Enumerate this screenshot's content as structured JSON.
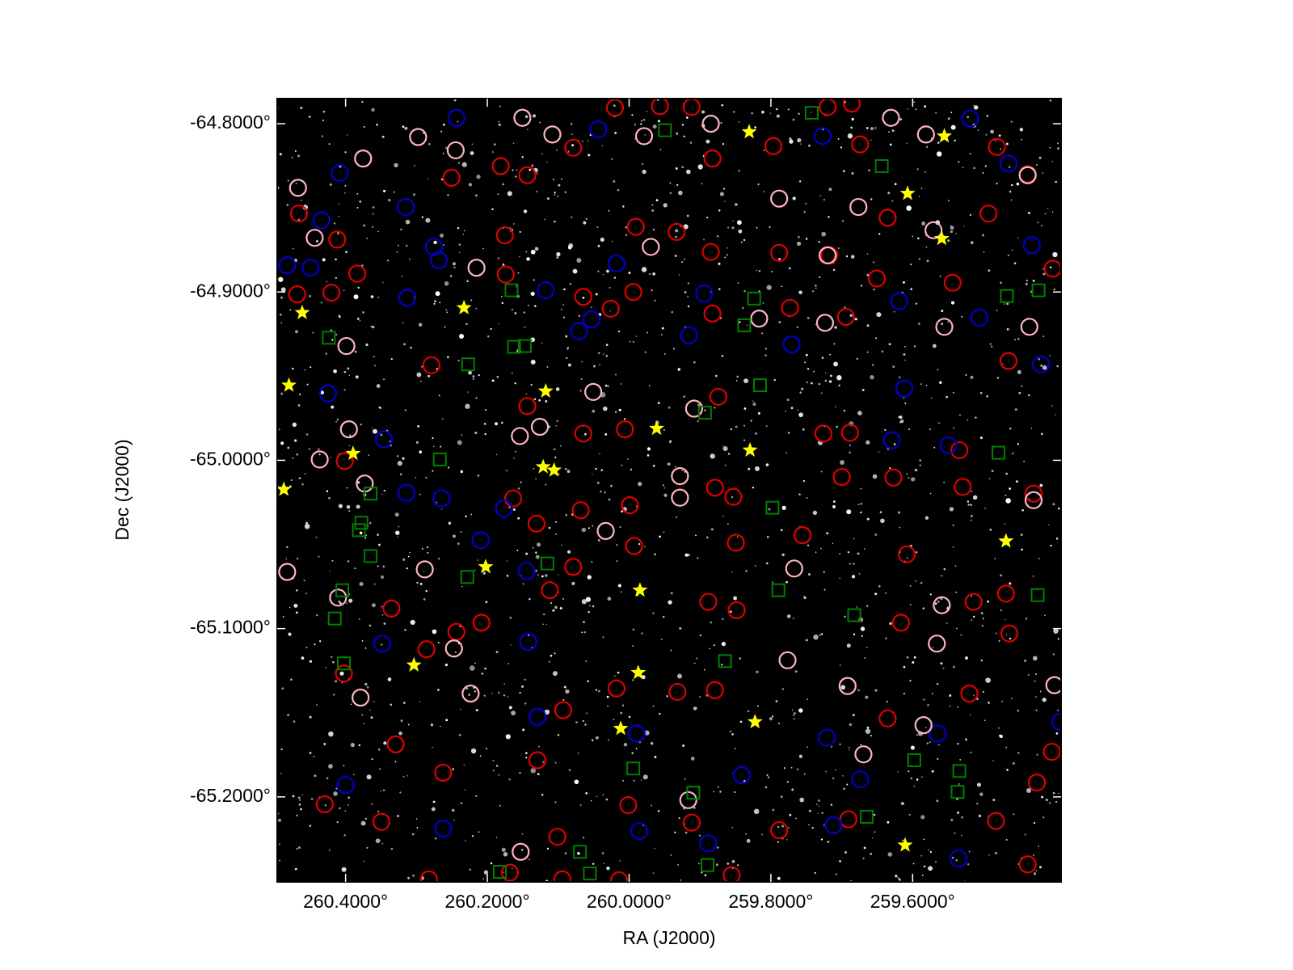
{
  "chart_data": {
    "type": "scatter",
    "xlabel": "RA (J2000)",
    "ylabel": "Dec (J2000)",
    "xlim": [
      260.4965,
      259.3906
    ],
    "ylim": [
      -65.2505,
      -64.7851
    ],
    "xticks": [
      {
        "value": 260.4,
        "label": "260.4000°"
      },
      {
        "value": 260.2,
        "label": "260.2000°"
      },
      {
        "value": 260.0,
        "label": "260.0000°"
      },
      {
        "value": 259.8,
        "label": "259.8000°"
      },
      {
        "value": 259.6,
        "label": "259.6000°"
      }
    ],
    "yticks": [
      {
        "value": -64.8,
        "label": "-64.8000°"
      },
      {
        "value": -64.9,
        "label": "-64.9000°"
      },
      {
        "value": -65.0,
        "label": "-65.0000°"
      },
      {
        "value": -65.1,
        "label": "-65.1000°"
      },
      {
        "value": -65.2,
        "label": "-65.2000°"
      }
    ],
    "background": "#000000",
    "series": [
      {
        "color": "#e00000",
        "marker": "circle",
        "x": [
          260.02,
          259.9565,
          259.9118,
          259.72,
          259.6859,
          260.0789,
          259.8824,
          259.7965,
          259.6741,
          259.4812,
          259.4377,
          260.4659,
          260.4118,
          260.2506,
          260.1812,
          260.1436,
          260.1753,
          259.9906,
          259.933,
          259.8847,
          259.7883,
          259.7177,
          259.6353,
          259.493,
          259.4024,
          260.4683,
          260.42,
          260.3836,
          260.1741,
          260.0647,
          260.0259,
          259.9941,
          259.8824,
          259.773,
          259.6941,
          259.6506,
          259.5436,
          259.4647,
          260.2789,
          260.1436,
          260.0647,
          260.0059,
          259.8741,
          259.7259,
          259.6883,
          259.5341,
          259.6271,
          259.4294,
          260.4012,
          260.1636,
          260.0683,
          259.9989,
          259.8789,
          259.853,
          259.7,
          259.5294,
          260.1306,
          260.0789,
          259.993,
          259.8494,
          259.7553,
          259.6083,
          259.4683,
          260.3353,
          260.2436,
          260.2083,
          260.1118,
          259.8883,
          259.8483,
          259.6165,
          259.5141,
          259.4636,
          260.4024,
          260.3294,
          260.2859,
          260.1294,
          260.093,
          260.0177,
          259.9318,
          259.8789,
          259.6353,
          259.52,
          259.4247,
          259.4036,
          260.4294,
          260.3494,
          260.2624,
          260.1012,
          260.0012,
          259.9118,
          259.7883,
          259.6906,
          259.4824,
          260.1683,
          260.2824,
          260.0941,
          260.0141,
          259.8553,
          259.4377
        ],
        "y": [
          -64.7905,
          -64.7896,
          -64.7901,
          -64.7901,
          -64.7881,
          -64.8143,
          -64.8207,
          -64.8133,
          -64.8123,
          -64.8138,
          -64.8301,
          -64.8534,
          -64.8688,
          -64.8321,
          -64.8252,
          -64.8306,
          -64.8663,
          -64.8613,
          -64.8643,
          -64.8762,
          -64.8767,
          -64.8782,
          -64.8559,
          -64.8534,
          -64.8861,
          -64.9014,
          -64.9004,
          -64.8891,
          -64.8896,
          -64.9029,
          -64.9099,
          -64.9,
          -64.9128,
          -64.9094,
          -64.9148,
          -64.892,
          -64.8945,
          -64.941,
          -64.9435,
          -64.9678,
          -64.9841,
          -64.9816,
          -64.9623,
          -64.9841,
          -64.9836,
          -64.994,
          -65.0103,
          -65.0198,
          -65.0004,
          -65.0227,
          -65.0297,
          -65.0267,
          -65.0163,
          -65.0217,
          -65.0099,
          -65.0158,
          -65.0376,
          -65.0633,
          -65.0509,
          -65.049,
          -65.0445,
          -65.0559,
          -65.0792,
          -65.0881,
          -65.1019,
          -65.0965,
          -65.0772,
          -65.0841,
          -65.0891,
          -65.0965,
          -65.0841,
          -65.1029,
          -65.1267,
          -65.1688,
          -65.1123,
          -65.1782,
          -65.1485,
          -65.1356,
          -65.1376,
          -65.1366,
          -65.1534,
          -65.1386,
          -65.1915,
          -65.1732,
          -65.2044,
          -65.2148,
          -65.1856,
          -65.2237,
          -65.2049,
          -65.2153,
          -65.2198,
          -65.2133,
          -65.2143,
          -65.245,
          -65.249,
          -65.249,
          -65.2495,
          -65.2465,
          -65.2401
        ]
      },
      {
        "color": "#0000cc",
        "marker": "circle",
        "x": [
          260.4083,
          260.3153,
          260.4341,
          260.4824,
          260.4494,
          260.2753,
          260.2683,
          260.313,
          260.1177,
          260.0177,
          259.8941,
          259.9153,
          260.053,
          260.0706,
          259.7706,
          259.6189,
          259.5059,
          259.6118,
          259.6294,
          259.5494,
          260.4247,
          260.3459,
          260.3141,
          260.2647,
          260.1765,
          260.2094,
          260.1447,
          260.3483,
          260.1424,
          260.1294,
          259.9894,
          259.7212,
          259.5647,
          259.6741,
          259.8412,
          259.7118,
          260.2624,
          260.4,
          259.9859,
          259.5189,
          259.4647,
          259.4318,
          259.7271,
          260.2436,
          260.0436,
          259.4189,
          259.3918,
          259.8883,
          259.5353
        ],
        "y": [
          -64.8292,
          -64.8495,
          -64.8574,
          -64.8841,
          -64.8856,
          -64.8732,
          -64.8811,
          -64.9034,
          -64.899,
          -64.8831,
          -64.9009,
          -64.9257,
          -64.9163,
          -64.9232,
          -64.9311,
          -64.9054,
          -64.9153,
          -64.9574,
          -64.9881,
          -64.991,
          -64.9603,
          -64.9876,
          -65.0193,
          -65.0227,
          -65.0287,
          -65.0475,
          -65.0658,
          -65.1089,
          -65.1079,
          -65.1524,
          -65.1623,
          -65.1648,
          -65.1623,
          -65.1896,
          -65.1871,
          -65.2168,
          -65.2188,
          -65.193,
          -65.2202,
          -64.797,
          -64.8237,
          -64.8722,
          -64.8074,
          -64.7965,
          -64.8034,
          -64.943,
          -65.1554,
          -65.2277,
          -65.2366
        ]
      },
      {
        "color": "#ffb6c1",
        "marker": "circle",
        "x": [
          260.4671,
          260.4436,
          260.3753,
          260.2977,
          260.2447,
          260.2153,
          260.1506,
          260.1083,
          259.9789,
          259.9694,
          259.8847,
          259.7883,
          259.72,
          259.7236,
          259.6765,
          259.6306,
          259.5812,
          259.5706,
          259.5553,
          259.4353,
          259.4377,
          260.3989,
          260.3953,
          260.4365,
          260.373,
          260.1541,
          260.1259,
          260.0506,
          260.033,
          259.9283,
          259.9283,
          259.9083,
          259.8165,
          259.7671,
          259.7765,
          259.6918,
          259.5659,
          259.5847,
          259.6694,
          259.9165,
          260.153,
          260.3789,
          260.2471,
          260.2236,
          260.4106,
          260.4824,
          260.2883,
          259.4,
          259.4294,
          259.5589
        ],
        "y": [
          -64.8381,
          -64.8678,
          -64.8207,
          -64.8079,
          -64.8158,
          -64.8856,
          -64.7965,
          -64.8064,
          -64.8074,
          -64.8732,
          -64.8,
          -64.8445,
          -64.8782,
          -64.9183,
          -64.8495,
          -64.7965,
          -64.8064,
          -64.8633,
          -64.9207,
          -64.9207,
          -64.8306,
          -64.9321,
          -64.9816,
          -64.9995,
          -65.0138,
          -64.9856,
          -64.9801,
          -64.9594,
          -65.042,
          -65.0094,
          -65.0222,
          -64.9693,
          -64.9158,
          -65.0643,
          -65.1188,
          -65.1341,
          -65.1089,
          -65.1574,
          -65.1747,
          -65.2019,
          -65.2326,
          -65.141,
          -65.1118,
          -65.1386,
          -65.0816,
          -65.0663,
          -65.0648,
          -65.1336,
          -65.0237,
          -65.0861
        ]
      },
      {
        "color": "#008000",
        "marker": "square",
        "x": [
          259.9494,
          259.7424,
          259.6436,
          260.1659,
          259.8236,
          259.4671,
          259.4224,
          260.4236,
          259.8377,
          260.1624,
          260.1471,
          260.2271,
          259.8153,
          259.893,
          260.2671,
          259.4789,
          260.3647,
          260.3777,
          260.3812,
          260.3647,
          259.7977,
          260.1153,
          260.2283,
          259.7894,
          259.4236,
          260.4047,
          259.6824,
          260.4153,
          260.4024,
          259.8647,
          259.5977,
          259.9941,
          259.9094,
          259.5341,
          259.5365,
          259.6647,
          260.0694,
          259.8894,
          260.1824,
          260.0553
        ],
        "y": [
          -64.8039,
          -64.7935,
          -64.8252,
          -64.899,
          -64.9039,
          -64.9024,
          -64.899,
          -64.9272,
          -64.9198,
          -64.9326,
          -64.9321,
          -64.943,
          -64.9554,
          -64.9717,
          -64.9995,
          -64.9955,
          -65.0198,
          -65.0371,
          -65.0415,
          -65.0569,
          -65.0282,
          -65.0613,
          -65.0693,
          -65.0772,
          -65.0801,
          -65.0772,
          -65.092,
          -65.094,
          -65.1207,
          -65.1193,
          -65.1782,
          -65.1831,
          -65.1975,
          -65.1846,
          -65.197,
          -65.2118,
          -65.2326,
          -65.2405,
          -65.2445,
          -65.2455
        ]
      },
      {
        "color": "#ffff00",
        "marker": "star",
        "x": [
          259.8306,
          259.5553,
          259.6071,
          259.5589,
          260.4612,
          260.233,
          260.48,
          260.1177,
          259.9612,
          259.8294,
          260.3894,
          260.4871,
          260.1212,
          260.1059,
          259.4683,
          260.2024,
          259.9847,
          260.3036,
          259.9871,
          259.8224,
          260.0118,
          259.6106
        ],
        "y": [
          -64.8049,
          -64.8074,
          -64.8415,
          -64.8683,
          -64.9123,
          -64.9094,
          -64.9554,
          -64.9589,
          -64.9811,
          -64.994,
          -64.996,
          -65.0173,
          -65.0039,
          -65.0059,
          -65.048,
          -65.0633,
          -65.0772,
          -65.1217,
          -65.1262,
          -65.1554,
          -65.1594,
          -65.2287
        ]
      }
    ]
  }
}
